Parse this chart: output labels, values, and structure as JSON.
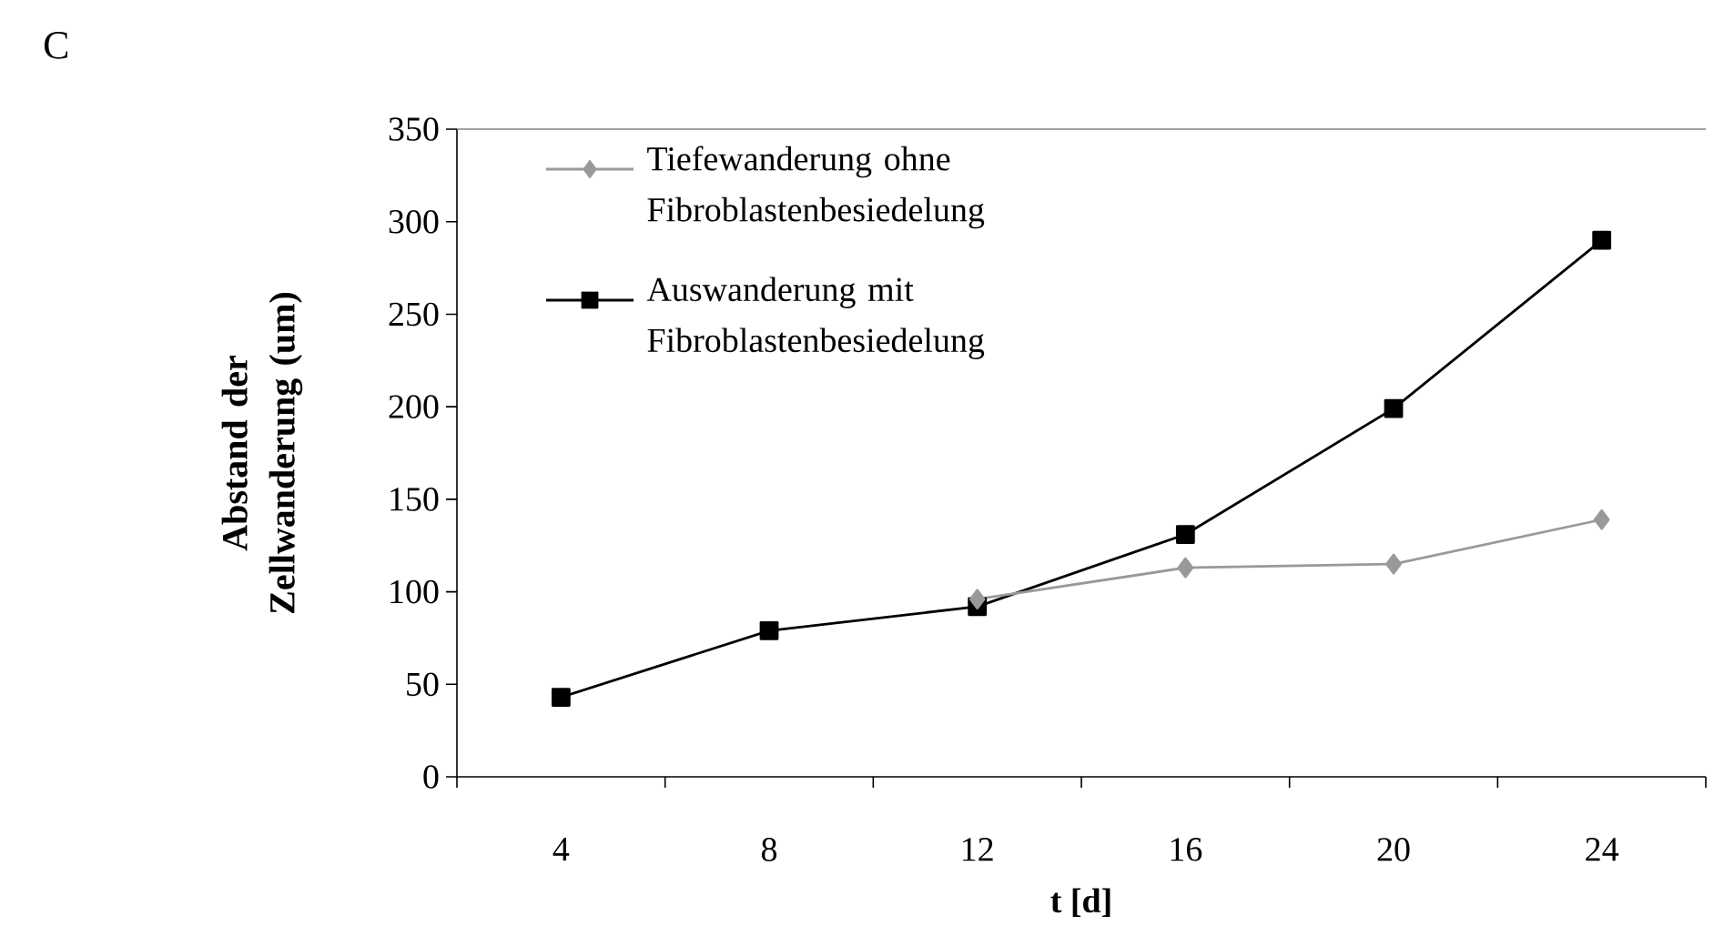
{
  "chart_data": {
    "type": "line",
    "annotations": [
      "C"
    ],
    "xlabel": "t [d]",
    "ylabel": "Abstand der Zellwanderung (um)",
    "categories": [
      "4",
      "8",
      "12",
      "16",
      "20",
      "24"
    ],
    "series": [
      {
        "name": "Tiefewanderung ohne Fibroblastenbesiedelung",
        "color": "#999999",
        "marker": "diamond",
        "values": [
          null,
          null,
          96,
          113,
          115,
          139
        ]
      },
      {
        "name": "Auswanderung mit Fibroblastenbesiedelung",
        "color": "#000000",
        "marker": "square",
        "values": [
          43,
          79,
          92,
          131,
          199,
          290
        ]
      }
    ],
    "ylim": [
      0,
      350
    ],
    "yticks": [
      0,
      50,
      100,
      150,
      200,
      250,
      300,
      350
    ],
    "grid": false,
    "legend": "top left",
    "line_style": "solid"
  }
}
